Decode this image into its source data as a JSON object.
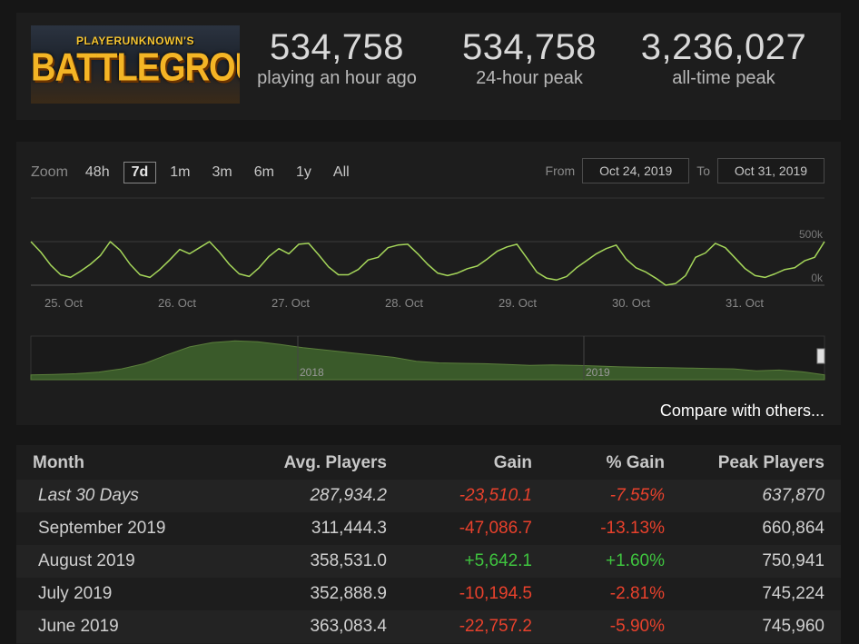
{
  "header": {
    "logo_top": "PLAYERUNKNOWN'S",
    "logo_main": "BATTLEGROUNDS",
    "stats": [
      {
        "value": "534,758",
        "label": "playing an hour ago"
      },
      {
        "value": "534,758",
        "label": "24-hour peak"
      },
      {
        "value": "3,236,027",
        "label": "all-time peak"
      }
    ]
  },
  "chart_controls": {
    "zoom_label": "Zoom",
    "zoom_options": [
      "48h",
      "7d",
      "1m",
      "3m",
      "6m",
      "1y",
      "All"
    ],
    "active_zoom": "7d",
    "from_label": "From",
    "from_value": "Oct 24, 2019",
    "to_label": "To",
    "to_value": "Oct 31, 2019",
    "compare_label": "Compare with others..."
  },
  "chart_data": [
    {
      "type": "line",
      "x_ticks": [
        "25. Oct",
        "26. Oct",
        "27. Oct",
        "28. Oct",
        "29. Oct",
        "30. Oct",
        "31. Oct"
      ],
      "y_ticks": [
        "500k",
        "0k"
      ],
      "ylim": [
        0,
        500000
      ],
      "line_color": "#a5d65a",
      "grid": true,
      "values_in_thousands": [
        500,
        380,
        230,
        120,
        90,
        160,
        240,
        340,
        500,
        400,
        240,
        120,
        90,
        180,
        290,
        410,
        360,
        430,
        500,
        380,
        240,
        130,
        100,
        200,
        330,
        420,
        360,
        470,
        480,
        350,
        210,
        120,
        120,
        180,
        290,
        320,
        430,
        460,
        470,
        360,
        240,
        140,
        110,
        140,
        190,
        220,
        300,
        390,
        440,
        470,
        310,
        150,
        80,
        60,
        100,
        200,
        280,
        360,
        420,
        460,
        300,
        200,
        150,
        80,
        0,
        20,
        110,
        320,
        370,
        480,
        430,
        310,
        190,
        110,
        90,
        130,
        180,
        200,
        280,
        320,
        500
      ]
    },
    {
      "type": "area",
      "x_ticks": [
        "2018",
        "2019"
      ],
      "fill_color": "#3a5a2a",
      "relative_values": [
        0.12,
        0.13,
        0.15,
        0.19,
        0.27,
        0.4,
        0.62,
        0.82,
        0.93,
        0.97,
        0.95,
        0.88,
        0.8,
        0.74,
        0.68,
        0.62,
        0.56,
        0.46,
        0.42,
        0.41,
        0.4,
        0.38,
        0.36,
        0.37,
        0.36,
        0.34,
        0.32,
        0.31,
        0.3,
        0.29,
        0.28,
        0.27,
        0.22,
        0.24,
        0.2,
        0.12
      ]
    }
  ],
  "table": {
    "headers": [
      "Month",
      "Avg. Players",
      "Gain",
      "% Gain",
      "Peak Players"
    ],
    "rows": [
      {
        "month": "Last 30 Days",
        "avg": "287,934.2",
        "gain": "-23,510.1",
        "pct": "-7.55%",
        "peak": "637,870",
        "sign": "neg",
        "italic": true
      },
      {
        "month": "September 2019",
        "avg": "311,444.3",
        "gain": "-47,086.7",
        "pct": "-13.13%",
        "peak": "660,864",
        "sign": "neg",
        "italic": false
      },
      {
        "month": "August 2019",
        "avg": "358,531.0",
        "gain": "+5,642.1",
        "pct": "+1.60%",
        "peak": "750,941",
        "sign": "pos",
        "italic": false
      },
      {
        "month": "July 2019",
        "avg": "352,888.9",
        "gain": "-10,194.5",
        "pct": "-2.81%",
        "peak": "745,224",
        "sign": "neg",
        "italic": false
      },
      {
        "month": "June 2019",
        "avg": "363,083.4",
        "gain": "-22,757.2",
        "pct": "-5.90%",
        "peak": "745,960",
        "sign": "neg",
        "italic": false
      }
    ]
  }
}
